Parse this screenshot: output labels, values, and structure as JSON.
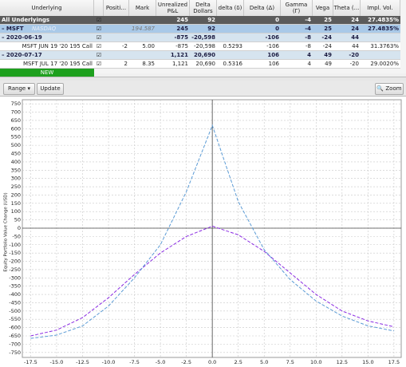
{
  "table": {
    "header": {
      "underlying": "Underlying",
      "position": "Positi...",
      "mark": "Mark",
      "pnl": "Unrealized P&L",
      "delta_dollars": "Delta Dollars",
      "delta_small": "delta (δ)",
      "delta": "Delta (Δ)",
      "gamma": "Gamma (Γ)",
      "vega": "Vega",
      "theta": "Theta (...",
      "iv": "Impl. Vol."
    },
    "rows": [
      {
        "underlying": "All Underlyings",
        "pnl": "245",
        "delta_dollars": "92",
        "delta": "0",
        "gamma": "-4",
        "vega": "25",
        "theta": "24",
        "iv": "27.4835%"
      },
      {
        "underlying": "– MSFT",
        "exchange": "NASDAQ",
        "mark": "194.587",
        "pnl": "245",
        "delta_dollars": "92",
        "delta": "0",
        "gamma": "-4",
        "vega": "25",
        "theta": "24",
        "iv": "27.4835%"
      },
      {
        "underlying": "– 2020-06-19",
        "pnl": "-875",
        "delta_dollars": "-20,598",
        "delta": "-106",
        "gamma": "-8",
        "vega": "-24",
        "theta": "44"
      },
      {
        "underlying": "MSFT JUN 19 '20 195 Call",
        "position": "-2",
        "mark": "5.00",
        "pnl": "-875",
        "delta_dollars": "-20,598",
        "delta_small": "0.5293",
        "delta": "-106",
        "gamma": "-8",
        "vega": "-24",
        "theta": "44",
        "iv": "31.3763%"
      },
      {
        "underlying": "– 2020-07-17",
        "pnl": "1,121",
        "delta_dollars": "20,690",
        "delta": "106",
        "gamma": "4",
        "vega": "49",
        "theta": "-20"
      },
      {
        "underlying": "MSFT JUL 17 '20 195 Call",
        "position": "2",
        "mark": "8.35",
        "pnl": "1,121",
        "delta_dollars": "20,690",
        "delta_small": "0.5316",
        "delta": "106",
        "gamma": "4",
        "vega": "49",
        "theta": "-20",
        "iv": "29.0020%"
      },
      {
        "underlying": "NEW"
      }
    ]
  },
  "toolbar": {
    "range": "Range",
    "update": "Update",
    "zoom": "Zoom"
  },
  "chart_data": {
    "type": "line",
    "y_label": "Equity Portfolio Value Change (USD)",
    "x": [
      -17.5,
      -15,
      -12.5,
      -10,
      -7.5,
      -5,
      -2.5,
      0,
      2.5,
      5,
      7.5,
      10,
      12.5,
      15,
      17.5
    ],
    "series": [
      {
        "color": "#8a2be2",
        "values": [
          -650,
          -615,
          -540,
          -420,
          -280,
          -150,
          -50,
          12,
          -40,
          -140,
          -270,
          -400,
          -500,
          -560,
          -595
        ]
      },
      {
        "color": "#5b9bd5",
        "values": [
          -665,
          -645,
          -590,
          -470,
          -300,
          -100,
          220,
          620,
          160,
          -130,
          -310,
          -440,
          -530,
          -590,
          -620
        ]
      }
    ],
    "xlim": [
      -18.3,
      18.2
    ],
    "ylim": [
      -780,
      775
    ],
    "xticks": [
      -17.5,
      {
        "value": -15,
        "label": "-15.0"
      },
      -12.5,
      {
        "value": -10,
        "label": "-10.0"
      },
      -7.5,
      {
        "value": -5,
        "label": "-5.0"
      },
      -2.5,
      {
        "value": 0,
        "label": "0.0"
      },
      2.5,
      {
        "value": 5,
        "label": "5.0"
      },
      7.5,
      {
        "value": 10,
        "label": "10.0"
      },
      12.5,
      {
        "value": 15,
        "label": "15.0"
      },
      17.5
    ],
    "yticks": [
      -750,
      -700,
      -650,
      -600,
      -550,
      -500,
      -450,
      -400,
      -350,
      -300,
      -250,
      -200,
      -150,
      -100,
      -50,
      0,
      50,
      100,
      150,
      200,
      250,
      300,
      350,
      400,
      450,
      500,
      550,
      600,
      650,
      700,
      750
    ],
    "grid": true
  }
}
